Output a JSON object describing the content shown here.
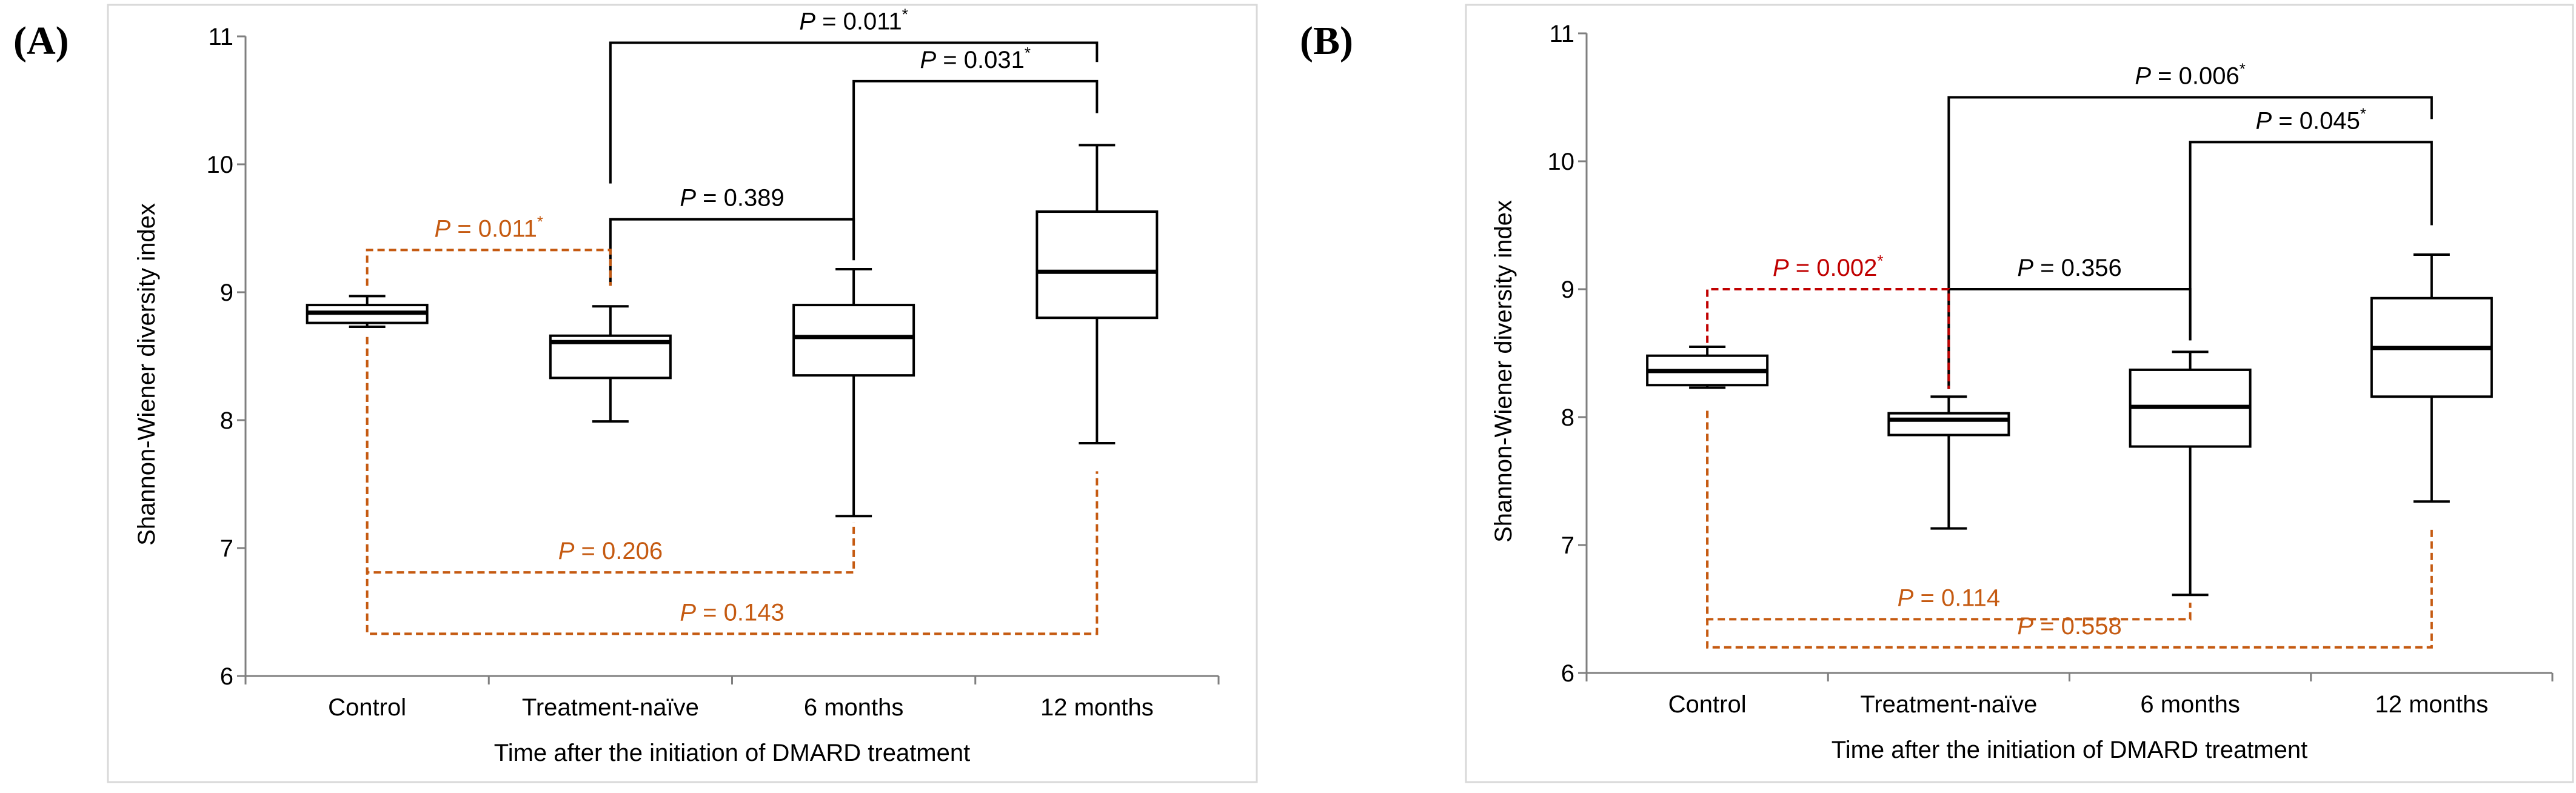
{
  "colors": {
    "black": "#000000",
    "orange": "#c55a11",
    "red": "#c00000",
    "frame": "#d9d9d9",
    "axis": "#7f7f7f"
  },
  "panels": [
    {
      "label": "(A)"
    },
    {
      "label": "(B)"
    }
  ],
  "chart_data": [
    {
      "type": "box",
      "panel": "(A)",
      "xlabel": "Time after the initiation of DMARD treatment",
      "ylabel": "Shannon-Wiener diversity index",
      "ylim": [
        6,
        11
      ],
      "yticks": [
        "6",
        "7",
        "8",
        "9",
        "10",
        "11"
      ],
      "categories": [
        "Control",
        "Treatment-naïve",
        "6 months",
        "12 months"
      ],
      "boxes": [
        {
          "whisker_low": 8.73,
          "q1": 8.76,
          "median": 8.84,
          "q3": 8.9,
          "whisker_high": 8.97
        },
        {
          "whisker_low": 7.99,
          "q1": 8.33,
          "median": 8.61,
          "q3": 8.66,
          "whisker_high": 8.89
        },
        {
          "whisker_low": 7.25,
          "q1": 8.35,
          "median": 8.65,
          "q3": 8.9,
          "whisker_high": 9.18
        },
        {
          "whisker_low": 7.82,
          "q1": 8.8,
          "median": 9.16,
          "q3": 9.63,
          "whisker_high": 10.15
        }
      ],
      "comparisons": [
        {
          "pair": [
            1,
            3
          ],
          "text": "P = 0.011",
          "star": "*",
          "style": "solid",
          "color": "black",
          "level": 10.95,
          "left_start": 9.85,
          "right_start": 10.8
        },
        {
          "pair": [
            2,
            3
          ],
          "text": "P = 0.031",
          "star": "*",
          "style": "solid",
          "color": "black",
          "level": 10.65,
          "left_start": 9.25,
          "right_start": 10.4
        },
        {
          "pair": [
            1,
            2
          ],
          "text": "P = 0.389",
          "star": "",
          "style": "solid",
          "color": "black",
          "level": 9.57,
          "left_start": 9.05,
          "right_start": 9.33
        },
        {
          "pair": [
            0,
            1
          ],
          "text": "P = 0.011",
          "star": "*",
          "style": "dashed",
          "color": "orange",
          "level": 9.33,
          "left_start": 9.05,
          "right_start": 9.05
        },
        {
          "pair": [
            0,
            2
          ],
          "text": "P = 0.206",
          "star": "",
          "style": "dashed",
          "color": "orange",
          "level": 6.81,
          "left_start": 8.65,
          "right_start": 7.2
        },
        {
          "pair": [
            0,
            3
          ],
          "text": "P = 0.143",
          "star": "",
          "style": "dashed",
          "color": "orange",
          "level": 6.33,
          "left_start": 8.65,
          "right_start": 7.6
        }
      ]
    },
    {
      "type": "box",
      "panel": "(B)",
      "xlabel": "Time after the initiation of DMARD treatment",
      "ylabel": "Shannon-Wiener diversity index",
      "ylim": [
        6,
        11
      ],
      "yticks": [
        "6",
        "7",
        "8",
        "9",
        "10",
        "11"
      ],
      "categories": [
        "Control",
        "Treatment-naïve",
        "6 months",
        "12 months"
      ],
      "boxes": [
        {
          "whisker_low": 8.23,
          "q1": 8.25,
          "median": 8.36,
          "q3": 8.48,
          "whisker_high": 8.55
        },
        {
          "whisker_low": 7.13,
          "q1": 7.86,
          "median": 7.98,
          "q3": 8.03,
          "whisker_high": 8.16
        },
        {
          "whisker_low": 6.61,
          "q1": 7.77,
          "median": 8.08,
          "q3": 8.37,
          "whisker_high": 8.51
        },
        {
          "whisker_low": 7.34,
          "q1": 8.16,
          "median": 8.54,
          "q3": 8.93,
          "whisker_high": 9.27
        }
      ],
      "comparisons": [
        {
          "pair": [
            1,
            3
          ],
          "text": "P = 0.006",
          "star": "*",
          "style": "solid",
          "color": "black",
          "level": 10.5,
          "left_start": 8.22,
          "right_start": 10.33
        },
        {
          "pair": [
            2,
            3
          ],
          "text": "P = 0.045",
          "star": "*",
          "style": "solid",
          "color": "black",
          "level": 10.15,
          "left_start": 8.6,
          "right_start": 9.5
        },
        {
          "pair": [
            1,
            2
          ],
          "text": "P = 0.356",
          "star": "",
          "style": "solid",
          "color": "black",
          "level": 9.0,
          "left_start": 8.22,
          "right_start": 8.6
        },
        {
          "pair": [
            0,
            1
          ],
          "text": "P = 0.002",
          "star": "*",
          "style": "dashed",
          "color": "red",
          "level": 9.0,
          "left_start": 8.58,
          "right_start": 8.22
        },
        {
          "pair": [
            0,
            2
          ],
          "text": "P = 0.114",
          "star": "",
          "style": "dashed",
          "color": "orange",
          "level": 6.42,
          "left_start": 8.05,
          "right_start": 6.55
        },
        {
          "pair": [
            0,
            3
          ],
          "text": "P = 0.558",
          "star": "",
          "style": "dashed",
          "color": "orange",
          "level": 6.2,
          "left_start": 8.05,
          "right_start": 7.15
        }
      ]
    }
  ]
}
